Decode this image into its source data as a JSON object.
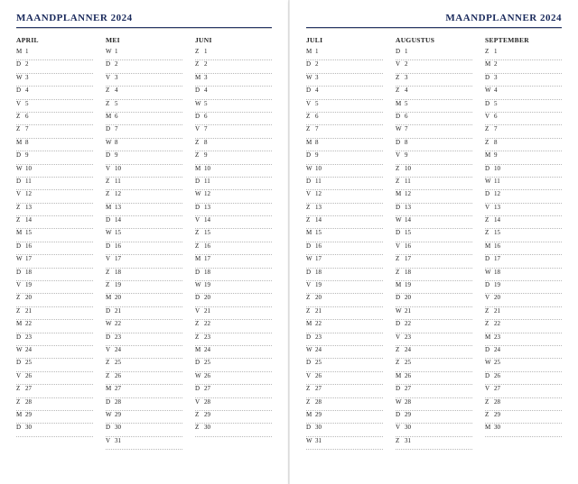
{
  "title_left": "MAANDPLANNER 2024",
  "title_right": "MAANDPLANNER 2024",
  "title_color": "#1a2a5c",
  "dot_color": "#b8b8b8",
  "page_bg": "#ffffff",
  "months_left": [
    {
      "name": "APRIL",
      "days": [
        [
          "M",
          1
        ],
        [
          "D",
          2
        ],
        [
          "W",
          3
        ],
        [
          "D",
          4
        ],
        [
          "V",
          5
        ],
        [
          "Z",
          6
        ],
        [
          "Z",
          7
        ],
        [
          "M",
          8
        ],
        [
          "D",
          9
        ],
        [
          "W",
          10
        ],
        [
          "D",
          11
        ],
        [
          "V",
          12
        ],
        [
          "Z",
          13
        ],
        [
          "Z",
          14
        ],
        [
          "M",
          15
        ],
        [
          "D",
          16
        ],
        [
          "W",
          17
        ],
        [
          "D",
          18
        ],
        [
          "V",
          19
        ],
        [
          "Z",
          20
        ],
        [
          "Z",
          21
        ],
        [
          "M",
          22
        ],
        [
          "D",
          23
        ],
        [
          "W",
          24
        ],
        [
          "D",
          25
        ],
        [
          "V",
          26
        ],
        [
          "Z",
          27
        ],
        [
          "Z",
          28
        ],
        [
          "M",
          29
        ],
        [
          "D",
          30
        ]
      ]
    },
    {
      "name": "MEI",
      "days": [
        [
          "W",
          1
        ],
        [
          "D",
          2
        ],
        [
          "V",
          3
        ],
        [
          "Z",
          4
        ],
        [
          "Z",
          5
        ],
        [
          "M",
          6
        ],
        [
          "D",
          7
        ],
        [
          "W",
          8
        ],
        [
          "D",
          9
        ],
        [
          "V",
          10
        ],
        [
          "Z",
          11
        ],
        [
          "Z",
          12
        ],
        [
          "M",
          13
        ],
        [
          "D",
          14
        ],
        [
          "W",
          15
        ],
        [
          "D",
          16
        ],
        [
          "V",
          17
        ],
        [
          "Z",
          18
        ],
        [
          "Z",
          19
        ],
        [
          "M",
          20
        ],
        [
          "D",
          21
        ],
        [
          "W",
          22
        ],
        [
          "D",
          23
        ],
        [
          "V",
          24
        ],
        [
          "Z",
          25
        ],
        [
          "Z",
          26
        ],
        [
          "M",
          27
        ],
        [
          "D",
          28
        ],
        [
          "W",
          29
        ],
        [
          "D",
          30
        ],
        [
          "V",
          31
        ]
      ]
    },
    {
      "name": "JUNI",
      "days": [
        [
          "Z",
          1
        ],
        [
          "Z",
          2
        ],
        [
          "M",
          3
        ],
        [
          "D",
          4
        ],
        [
          "W",
          5
        ],
        [
          "D",
          6
        ],
        [
          "V",
          7
        ],
        [
          "Z",
          8
        ],
        [
          "Z",
          9
        ],
        [
          "M",
          10
        ],
        [
          "D",
          11
        ],
        [
          "W",
          12
        ],
        [
          "D",
          13
        ],
        [
          "V",
          14
        ],
        [
          "Z",
          15
        ],
        [
          "Z",
          16
        ],
        [
          "M",
          17
        ],
        [
          "D",
          18
        ],
        [
          "W",
          19
        ],
        [
          "D",
          20
        ],
        [
          "V",
          21
        ],
        [
          "Z",
          22
        ],
        [
          "Z",
          23
        ],
        [
          "M",
          24
        ],
        [
          "D",
          25
        ],
        [
          "W",
          26
        ],
        [
          "D",
          27
        ],
        [
          "V",
          28
        ],
        [
          "Z",
          29
        ],
        [
          "Z",
          30
        ]
      ]
    }
  ],
  "months_right": [
    {
      "name": "JULI",
      "days": [
        [
          "M",
          1
        ],
        [
          "D",
          2
        ],
        [
          "W",
          3
        ],
        [
          "D",
          4
        ],
        [
          "V",
          5
        ],
        [
          "Z",
          6
        ],
        [
          "Z",
          7
        ],
        [
          "M",
          8
        ],
        [
          "D",
          9
        ],
        [
          "W",
          10
        ],
        [
          "D",
          11
        ],
        [
          "V",
          12
        ],
        [
          "Z",
          13
        ],
        [
          "Z",
          14
        ],
        [
          "M",
          15
        ],
        [
          "D",
          16
        ],
        [
          "W",
          17
        ],
        [
          "D",
          18
        ],
        [
          "V",
          19
        ],
        [
          "Z",
          20
        ],
        [
          "Z",
          21
        ],
        [
          "M",
          22
        ],
        [
          "D",
          23
        ],
        [
          "W",
          24
        ],
        [
          "D",
          25
        ],
        [
          "V",
          26
        ],
        [
          "Z",
          27
        ],
        [
          "Z",
          28
        ],
        [
          "M",
          29
        ],
        [
          "D",
          30
        ],
        [
          "W",
          31
        ]
      ]
    },
    {
      "name": "AUGUSTUS",
      "days": [
        [
          "D",
          1
        ],
        [
          "V",
          2
        ],
        [
          "Z",
          3
        ],
        [
          "Z",
          4
        ],
        [
          "M",
          5
        ],
        [
          "D",
          6
        ],
        [
          "W",
          7
        ],
        [
          "D",
          8
        ],
        [
          "V",
          9
        ],
        [
          "Z",
          10
        ],
        [
          "Z",
          11
        ],
        [
          "M",
          12
        ],
        [
          "D",
          13
        ],
        [
          "W",
          14
        ],
        [
          "D",
          15
        ],
        [
          "V",
          16
        ],
        [
          "Z",
          17
        ],
        [
          "Z",
          18
        ],
        [
          "M",
          19
        ],
        [
          "D",
          20
        ],
        [
          "W",
          21
        ],
        [
          "D",
          22
        ],
        [
          "V",
          23
        ],
        [
          "Z",
          24
        ],
        [
          "Z",
          25
        ],
        [
          "M",
          26
        ],
        [
          "D",
          27
        ],
        [
          "W",
          28
        ],
        [
          "D",
          29
        ],
        [
          "V",
          30
        ],
        [
          "Z",
          31
        ]
      ]
    },
    {
      "name": "SEPTEMBER",
      "days": [
        [
          "Z",
          1
        ],
        [
          "M",
          2
        ],
        [
          "D",
          3
        ],
        [
          "W",
          4
        ],
        [
          "D",
          5
        ],
        [
          "V",
          6
        ],
        [
          "Z",
          7
        ],
        [
          "Z",
          8
        ],
        [
          "M",
          9
        ],
        [
          "D",
          10
        ],
        [
          "W",
          11
        ],
        [
          "D",
          12
        ],
        [
          "V",
          13
        ],
        [
          "Z",
          14
        ],
        [
          "Z",
          15
        ],
        [
          "M",
          16
        ],
        [
          "D",
          17
        ],
        [
          "W",
          18
        ],
        [
          "D",
          19
        ],
        [
          "V",
          20
        ],
        [
          "Z",
          21
        ],
        [
          "Z",
          22
        ],
        [
          "M",
          23
        ],
        [
          "D",
          24
        ],
        [
          "W",
          25
        ],
        [
          "D",
          26
        ],
        [
          "V",
          27
        ],
        [
          "Z",
          28
        ],
        [
          "Z",
          29
        ],
        [
          "M",
          30
        ]
      ]
    }
  ]
}
